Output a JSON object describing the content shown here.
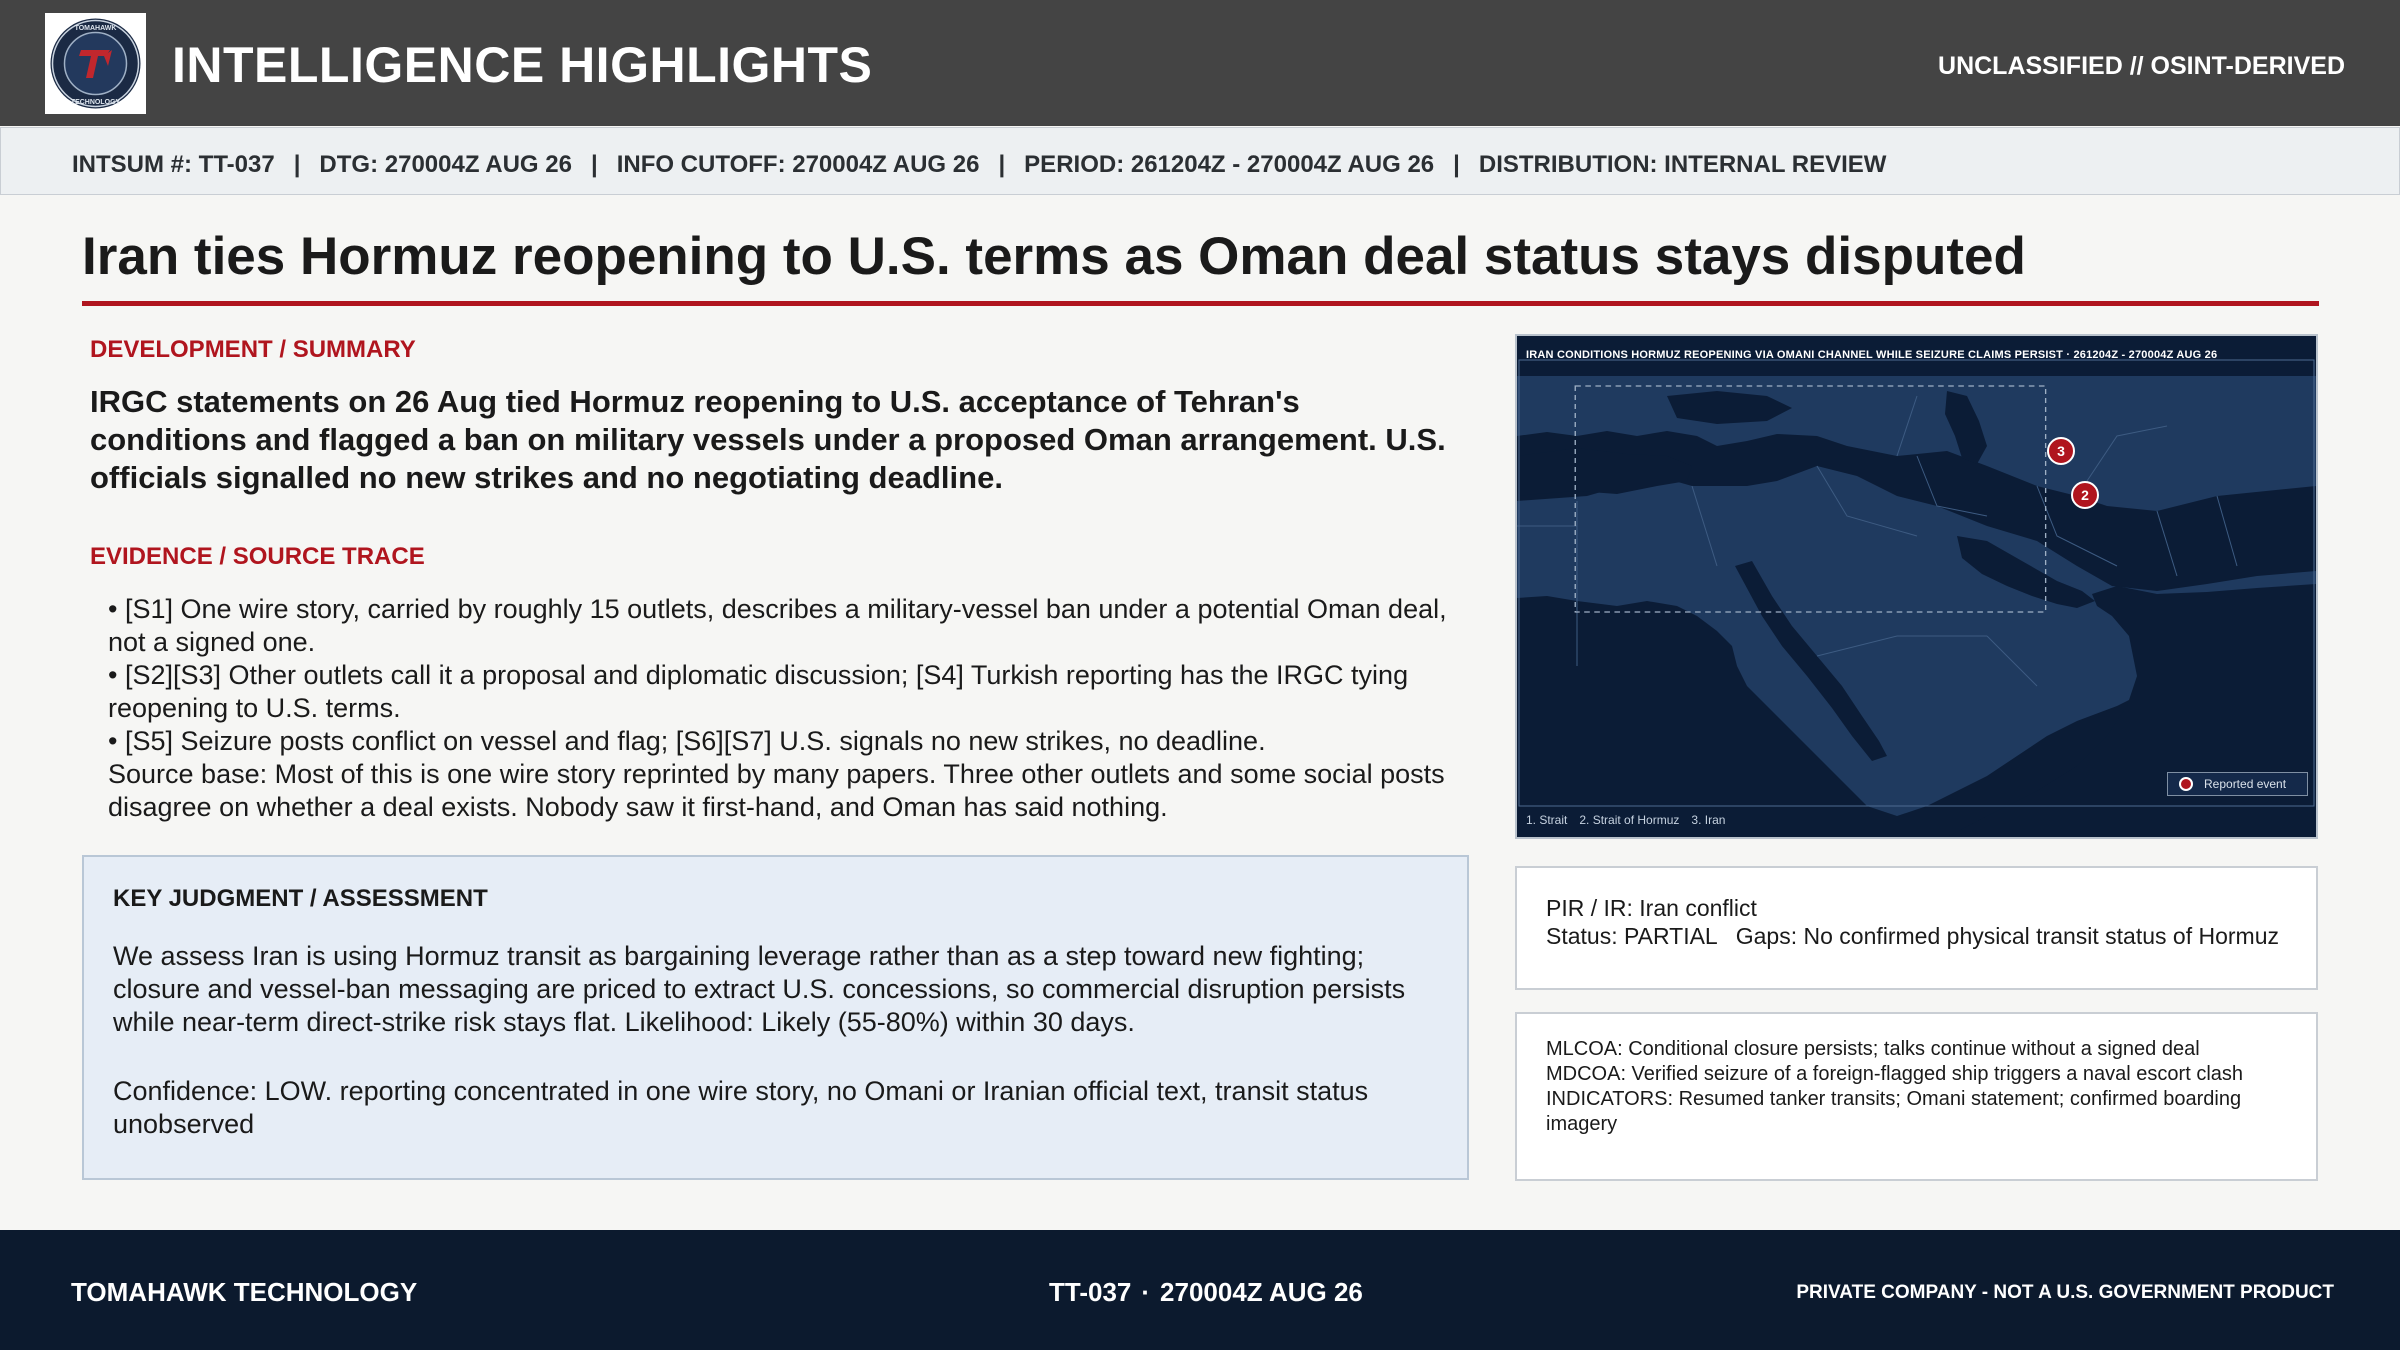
{
  "header": {
    "title": "INTELLIGENCE HIGHLIGHTS",
    "classification": "UNCLASSIFIED // OSINT-DERIVED",
    "logo_text": "TOMAHAWK TECHNOLOGY",
    "logo_icon": "tomahawk-logo-icon"
  },
  "meta": {
    "intsum": "INTSUM #: TT-037",
    "dtg": "DTG: 270004Z AUG 26",
    "cutoff": "INFO CUTOFF: 270004Z AUG 26",
    "period": "PERIOD: 261204Z - 270004Z AUG 26",
    "distribution": "DISTRIBUTION: INTERNAL REVIEW",
    "separator": "|"
  },
  "headline": "Iran ties Hormuz reopening to U.S. terms as Oman deal status stays disputed",
  "development": {
    "label": "DEVELOPMENT / SUMMARY",
    "text": "IRGC statements on 26 Aug tied Hormuz reopening to U.S. acceptance of Tehran's conditions and flagged a ban on military vessels under a proposed Oman arrangement. U.S. officials signalled no new strikes and no negotiating deadline."
  },
  "evidence": {
    "label": "EVIDENCE / SOURCE TRACE",
    "bullets": [
      "• [S1] One wire story, carried by roughly 15 outlets, describes a military-vessel ban under a potential Oman deal, not a signed one.",
      "• [S2][S3] Other outlets call it a proposal and diplomatic discussion; [S4] Turkish reporting has the IRGC tying reopening to U.S. terms.",
      "• [S5] Seizure posts conflict on vessel and flag; [S6][S7] U.S. signals no new strikes, no deadline."
    ],
    "source_base": "Source base: Most of this is one wire story reprinted by many papers. Three other outlets and some social posts disagree on whether a deal exists. Nobody saw it first-hand, and Oman has said nothing."
  },
  "key_judgment": {
    "label": "KEY JUDGMENT / ASSESSMENT",
    "assessment": "We assess Iran is using Hormuz transit as bargaining leverage rather than as a step toward new fighting; closure and vessel-ban messaging are priced to extract U.S. concessions, so commercial disruption persists while near-term direct-strike risk stays flat. Likelihood: Likely (55-80%) within 30 days.",
    "confidence": "Confidence: LOW. reporting concentrated in one wire story, no Omani or Iranian official text, transit status unobserved"
  },
  "map": {
    "caption": "IRAN CONDITIONS HORMUZ REOPENING VIA OMANI CHANNEL WHILE SEIZURE CLAIMS PERSIST  ·  261204Z - 270004Z AUG 26",
    "legend_label": "Reported event",
    "footnotes": [
      "1. Strait",
      "2. Strait of Hormuz",
      "3. Iran"
    ],
    "markers": [
      {
        "label": "3",
        "name": "Iran"
      },
      {
        "label": "2",
        "name": "Strait of Hormuz"
      }
    ],
    "colors": {
      "land": "#1f3a5f",
      "water": "#0b1c36",
      "marker": "#b0151e"
    }
  },
  "pir": {
    "line1": "PIR / IR: Iran conflict",
    "status": "Status: PARTIAL",
    "gaps": "Gaps: No confirmed physical transit status of Hormuz"
  },
  "coa": {
    "mlcoa": "MLCOA: Conditional closure persists; talks continue without a signed deal",
    "mdcoa": "MDCOA: Verified seizure of a foreign-flagged ship triggers a naval escort clash",
    "indicators": "INDICATORS: Resumed tanker transits; Omani statement; confirmed boarding imagery"
  },
  "footer": {
    "company": "TOMAHAWK TECHNOLOGY",
    "doc_id": "TT-037",
    "dot": "·",
    "dtg": "270004Z AUG 26",
    "disclaimer": "PRIVATE COMPANY - NOT A U.S. GOVERNMENT PRODUCT"
  },
  "colors": {
    "accent_red": "#b0151e",
    "header_bg": "#444444",
    "footer_bg": "#0c1a2e",
    "kj_bg": "#e6edf6"
  }
}
